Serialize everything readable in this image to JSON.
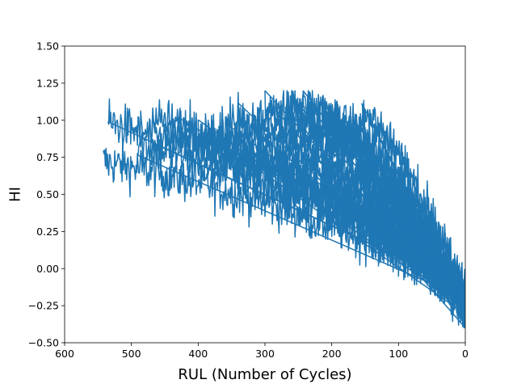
{
  "chart_data": {
    "type": "line",
    "title": "",
    "xlabel": "RUL (Number of Cycles)",
    "ylabel": "HI",
    "xlim": [
      600,
      0
    ],
    "ylim": [
      -0.5,
      1.5
    ],
    "x_inverted": true,
    "grid": false,
    "legend": "none",
    "x_ticks": [
      600,
      500,
      400,
      300,
      200,
      100,
      0
    ],
    "x_tick_labels": [
      "600",
      "500",
      "400",
      "300",
      "200",
      "100",
      "0"
    ],
    "y_ticks": [
      -0.5,
      -0.25,
      0.0,
      0.25,
      0.5,
      0.75,
      1.0,
      1.25,
      1.5
    ],
    "y_tick_labels": [
      "−0.50",
      "−0.25",
      "0.00",
      "0.25",
      "0.50",
      "0.75",
      "1.00",
      "1.25",
      "1.50"
    ],
    "line_color": "#1f77b4",
    "series": [
      {
        "values_note": "many run-to-failure trajectories concatenated into one trace; each trajectory's HI is noisy and decreases toward RUL=0",
        "trajectories": [
          {
            "rul_start": 542,
            "hi_start": 0.72,
            "hi_end": -0.1
          },
          {
            "rul_start": 535,
            "hi_start": 0.98,
            "hi_end": -0.15
          },
          {
            "rul_start": 490,
            "hi_start": 0.84,
            "hi_end": -0.12
          },
          {
            "rul_start": 470,
            "hi_start": 1.02,
            "hi_end": -0.18
          },
          {
            "rul_start": 430,
            "hi_start": 0.95,
            "hi_end": -0.2
          },
          {
            "rul_start": 400,
            "hi_start": 0.9,
            "hi_end": -0.22
          },
          {
            "rul_start": 380,
            "hi_start": 0.95,
            "hi_end": -0.2
          },
          {
            "rul_start": 360,
            "hi_start": 1.0,
            "hi_end": -0.25
          },
          {
            "rul_start": 340,
            "hi_start": 1.02,
            "hi_end": -0.22
          },
          {
            "rul_start": 320,
            "hi_start": 1.05,
            "hi_end": -0.25
          },
          {
            "rul_start": 300,
            "hi_start": 1.08,
            "hi_end": -0.28
          },
          {
            "rul_start": 285,
            "hi_start": 1.1,
            "hi_end": -0.22
          },
          {
            "rul_start": 270,
            "hi_start": 1.12,
            "hi_end": -0.25
          },
          {
            "rul_start": 255,
            "hi_start": 1.1,
            "hi_end": -0.28
          },
          {
            "rul_start": 243,
            "hi_start": 1.18,
            "hi_end": -0.3
          },
          {
            "rul_start": 230,
            "hi_start": 1.06,
            "hi_end": -0.22
          },
          {
            "rul_start": 215,
            "hi_start": 1.05,
            "hi_end": -0.25
          },
          {
            "rul_start": 200,
            "hi_start": 1.02,
            "hi_end": -0.2
          },
          {
            "rul_start": 185,
            "hi_start": 1.0,
            "hi_end": -0.22
          },
          {
            "rul_start": 170,
            "hi_start": 0.98,
            "hi_end": -0.25
          },
          {
            "rul_start": 155,
            "hi_start": 1.08,
            "hi_end": -0.2
          },
          {
            "rul_start": 145,
            "hi_start": 1.02,
            "hi_end": -0.22
          }
        ]
      }
    ]
  }
}
